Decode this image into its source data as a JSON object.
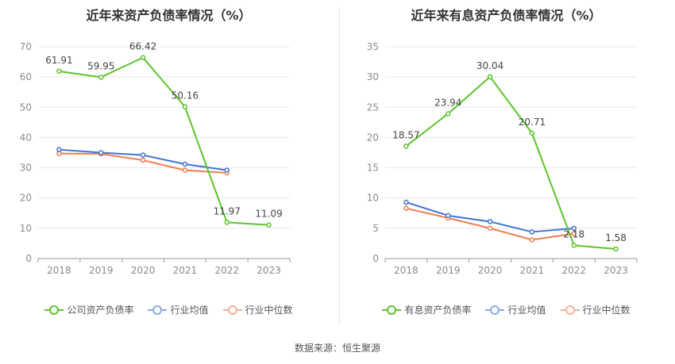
{
  "source": "数据来源：恒生聚源",
  "chart_data": [
    {
      "type": "line",
      "title": "近年来资产负债率情况（%）",
      "categories": [
        "2018",
        "2019",
        "2020",
        "2021",
        "2022",
        "2023"
      ],
      "ylim": [
        0,
        70
      ],
      "yticks": [
        "0",
        "10",
        "20",
        "30",
        "40",
        "50",
        "60",
        "70"
      ],
      "grid": true,
      "legend_position": "bottom",
      "series": [
        {
          "name": "公司资产负债率",
          "color": "#5cc52a",
          "labeled": true,
          "values": [
            61.91,
            59.95,
            66.42,
            50.16,
            11.97,
            11.09
          ],
          "labels": [
            "61.91",
            "59.95",
            "66.42",
            "50.16",
            "11.97",
            "11.09"
          ]
        },
        {
          "name": "行业均值",
          "color": "#3e74d6",
          "labeled": false,
          "values": [
            36.0,
            35.0,
            34.2,
            31.2,
            29.2,
            null
          ]
        },
        {
          "name": "行业中位数",
          "color": "#ee7f4f",
          "labeled": false,
          "values": [
            34.7,
            34.6,
            32.5,
            29.2,
            28.3,
            null
          ]
        }
      ]
    },
    {
      "type": "line",
      "title": "近年来有息资产负债率情况（%）",
      "categories": [
        "2018",
        "2019",
        "2020",
        "2021",
        "2022",
        "2023"
      ],
      "ylim": [
        0,
        35
      ],
      "yticks": [
        "0",
        "5",
        "10",
        "15",
        "20",
        "25",
        "30",
        "35"
      ],
      "grid": true,
      "legend_position": "bottom",
      "series": [
        {
          "name": "有息资产负债率",
          "color": "#5cc52a",
          "labeled": true,
          "values": [
            18.57,
            23.94,
            30.04,
            20.71,
            2.18,
            1.58
          ],
          "labels": [
            "18.57",
            "23.94",
            "30.04",
            "20.71",
            "2.18",
            "1.58"
          ]
        },
        {
          "name": "行业均值",
          "color": "#3e74d6",
          "labeled": false,
          "values": [
            9.3,
            7.1,
            6.1,
            4.4,
            5.0,
            null
          ]
        },
        {
          "name": "行业中位数",
          "color": "#ee7f4f",
          "labeled": false,
          "values": [
            8.3,
            6.7,
            5.0,
            3.1,
            4.1,
            null
          ]
        }
      ]
    }
  ]
}
